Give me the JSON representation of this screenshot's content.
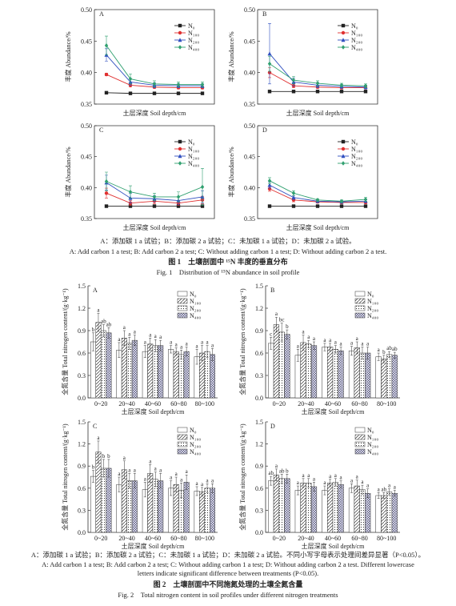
{
  "chart_data": [
    {
      "type": "line",
      "panel": "A",
      "xlabel": "土层深度 Soil depth/cm",
      "ylabel": "丰度 Abundance/%",
      "x": [
        10,
        30,
        50,
        70,
        90
      ],
      "xlim": [
        0,
        100
      ],
      "ylim": [
        0.35,
        0.5
      ],
      "yticks": [
        0.35,
        {
          "value": 0.4,
          "label": "0.40"
        },
        0.45,
        {
          "value": 0.5,
          "label": "0.50"
        }
      ],
      "series": [
        {
          "name": "N₀",
          "color": "#222222",
          "marker": "square",
          "values": [
            0.368,
            0.367,
            0.367,
            0.367,
            0.367
          ],
          "errors": [
            0.001,
            0.001,
            0.001,
            0.001,
            0.001
          ]
        },
        {
          "name": "N₁₀₀",
          "color": "#e03030",
          "marker": "circle",
          "values": [
            0.397,
            0.38,
            0.377,
            0.376,
            0.376
          ],
          "errors": [
            0.002,
            0.003,
            0.002,
            0.002,
            0.002
          ]
        },
        {
          "name": "N₂₀₀",
          "color": "#3050c0",
          "marker": "triangle",
          "values": [
            0.428,
            0.385,
            0.38,
            0.379,
            0.379
          ],
          "errors": [
            0.01,
            0.005,
            0.004,
            0.003,
            0.003
          ]
        },
        {
          "name": "N₄₀₀",
          "color": "#30a070",
          "marker": "diamond",
          "values": [
            0.443,
            0.39,
            0.382,
            0.381,
            0.381
          ],
          "errors": [
            0.015,
            0.008,
            0.005,
            0.004,
            0.004
          ]
        }
      ]
    },
    {
      "type": "line",
      "panel": "B",
      "xlabel": "土层深度 Soil depth/cm",
      "ylabel": "丰度 Abundance/%",
      "x": [
        10,
        30,
        50,
        70,
        90
      ],
      "xlim": [
        0,
        100
      ],
      "ylim": [
        0.35,
        0.5
      ],
      "yticks": [
        0.35,
        {
          "value": 0.4,
          "label": "0.40"
        },
        0.45,
        {
          "value": 0.5,
          "label": "0.50"
        }
      ],
      "series": [
        {
          "name": "N₀",
          "color": "#222222",
          "marker": "square",
          "values": [
            0.37,
            0.37,
            0.37,
            0.37,
            0.37
          ],
          "errors": [
            0.001,
            0.001,
            0.001,
            0.001,
            0.001
          ]
        },
        {
          "name": "N₁₀₀",
          "color": "#e03030",
          "marker": "circle",
          "values": [
            0.4,
            0.379,
            0.377,
            0.376,
            0.376
          ],
          "errors": [
            0.008,
            0.003,
            0.002,
            0.002,
            0.002
          ]
        },
        {
          "name": "N₂₀₀",
          "color": "#3050c0",
          "marker": "triangle",
          "values": [
            0.43,
            0.385,
            0.38,
            0.378,
            0.377
          ],
          "errors": [
            0.048,
            0.006,
            0.004,
            0.003,
            0.003
          ]
        },
        {
          "name": "N₄₀₀",
          "color": "#30a070",
          "marker": "diamond",
          "values": [
            0.414,
            0.388,
            0.383,
            0.38,
            0.379
          ],
          "errors": [
            0.012,
            0.006,
            0.004,
            0.003,
            0.003
          ]
        }
      ]
    },
    {
      "type": "line",
      "panel": "C",
      "xlabel": "土层深度 Soil depth/cm",
      "ylabel": "丰度 Abundance/%",
      "x": [
        10,
        30,
        50,
        70,
        90
      ],
      "xlim": [
        0,
        100
      ],
      "ylim": [
        0.35,
        0.5
      ],
      "yticks": [
        0.35,
        {
          "value": 0.4,
          "label": "0.40"
        },
        0.45,
        {
          "value": 0.5,
          "label": "0.50"
        }
      ],
      "series": [
        {
          "name": "N₀",
          "color": "#222222",
          "marker": "square",
          "values": [
            0.37,
            0.37,
            0.37,
            0.37,
            0.37
          ],
          "errors": [
            0.001,
            0.001,
            0.001,
            0.001,
            0.001
          ]
        },
        {
          "name": "N₁₀₀",
          "color": "#e03030",
          "marker": "circle",
          "values": [
            0.391,
            0.375,
            0.378,
            0.375,
            0.38
          ],
          "errors": [
            0.008,
            0.004,
            0.004,
            0.004,
            0.006
          ]
        },
        {
          "name": "N₂₀₀",
          "color": "#3050c0",
          "marker": "triangle",
          "values": [
            0.408,
            0.383,
            0.382,
            0.379,
            0.385
          ],
          "errors": [
            0.012,
            0.008,
            0.005,
            0.006,
            0.01
          ]
        },
        {
          "name": "N₄₀₀",
          "color": "#30a070",
          "marker": "diamond",
          "values": [
            0.41,
            0.393,
            0.385,
            0.385,
            0.401
          ],
          "errors": [
            0.015,
            0.01,
            0.006,
            0.008,
            0.03
          ]
        }
      ]
    },
    {
      "type": "line",
      "panel": "D",
      "xlabel": "土层深度 Soil depth/cm",
      "ylabel": "丰度 Abundance/%",
      "x": [
        10,
        30,
        50,
        70,
        90
      ],
      "xlim": [
        0,
        100
      ],
      "ylim": [
        0.35,
        0.5
      ],
      "yticks": [
        0.35,
        {
          "value": 0.4,
          "label": "0.40"
        },
        0.45,
        {
          "value": 0.5,
          "label": "0.50"
        }
      ],
      "series": [
        {
          "name": "N₀",
          "color": "#222222",
          "marker": "square",
          "values": [
            0.37,
            0.37,
            0.37,
            0.37,
            0.37
          ],
          "errors": [
            0.001,
            0.001,
            0.001,
            0.001,
            0.001
          ]
        },
        {
          "name": "N₁₀₀",
          "color": "#e03030",
          "marker": "circle",
          "values": [
            0.398,
            0.38,
            0.377,
            0.376,
            0.376
          ],
          "errors": [
            0.004,
            0.003,
            0.002,
            0.002,
            0.002
          ]
        },
        {
          "name": "N₂₀₀",
          "color": "#3050c0",
          "marker": "triangle",
          "values": [
            0.404,
            0.384,
            0.378,
            0.377,
            0.378
          ],
          "errors": [
            0.005,
            0.003,
            0.002,
            0.002,
            0.002
          ]
        },
        {
          "name": "N₄₀₀",
          "color": "#30a070",
          "marker": "diamond",
          "values": [
            0.411,
            0.391,
            0.38,
            0.378,
            0.381
          ],
          "errors": [
            0.005,
            0.004,
            0.002,
            0.002,
            0.003
          ]
        }
      ]
    },
    {
      "type": "bar",
      "panel": "A",
      "xlabel": "土层深度 Soil depth/cm",
      "ylabel": "全氮含量 Total nitrogen content/(g·kg⁻¹)",
      "categories": [
        "0~20",
        "20~40",
        "40~60",
        "60~80",
        "80~100"
      ],
      "ylim": [
        0,
        1.5
      ],
      "yticks": [
        {
          "value": 0,
          "label": "0.0"
        },
        0.3,
        0.6,
        0.9,
        1.2,
        1.5
      ],
      "series": [
        {
          "name": "N₀",
          "pattern": "none",
          "values": [
            0.75,
            0.64,
            0.62,
            0.65,
            0.55
          ],
          "errors": [
            0.12,
            0.1,
            0.08,
            0.05,
            0.1
          ],
          "letters": [
            "b",
            "a",
            "a",
            "a",
            "a"
          ]
        },
        {
          "name": "N₁₀₀",
          "pattern": "diagonal",
          "values": [
            1.01,
            0.8,
            0.72,
            0.62,
            0.6
          ],
          "errors": [
            0.12,
            0.1,
            0.08,
            0.05,
            0.1
          ],
          "letters": [
            "a",
            "a",
            "a",
            "a",
            "a"
          ]
        },
        {
          "name": "N₂₀₀",
          "pattern": "dots",
          "values": [
            0.9,
            0.73,
            0.7,
            0.58,
            0.62
          ],
          "errors": [
            0.08,
            0.08,
            0.08,
            0.06,
            0.08
          ],
          "letters": [
            "ab",
            "a",
            "a",
            "a",
            "a"
          ]
        },
        {
          "name": "N₄₀₀",
          "pattern": "grid",
          "values": [
            0.87,
            0.77,
            0.7,
            0.62,
            0.58
          ],
          "errors": [
            0.07,
            0.07,
            0.07,
            0.06,
            0.08
          ],
          "letters": [
            "ab",
            "a",
            "a",
            "a",
            "a"
          ]
        }
      ]
    },
    {
      "type": "bar",
      "panel": "B",
      "xlabel": "土层深度 Soil depth/cm",
      "ylabel": "全氮含量 Total nitrogen content/(g·kg⁻¹)",
      "categories": [
        "0~20",
        "20~40",
        "40~60",
        "60~80",
        "80~100"
      ],
      "ylim": [
        0,
        1.5
      ],
      "yticks": [
        {
          "value": 0,
          "label": "0.0"
        },
        0.3,
        0.6,
        0.9,
        1.2,
        1.5
      ],
      "series": [
        {
          "name": "N₀",
          "pattern": "none",
          "values": [
            0.73,
            0.57,
            0.68,
            0.63,
            0.55
          ],
          "errors": [
            0.08,
            0.08,
            0.05,
            0.06,
            0.05
          ],
          "letters": [
            "c",
            "a",
            "a",
            "a",
            "a"
          ]
        },
        {
          "name": "N₁₀₀",
          "pattern": "diagonal",
          "values": [
            0.98,
            0.74,
            0.68,
            0.67,
            0.52
          ],
          "errors": [
            0.1,
            0.1,
            0.05,
            0.08,
            0.05
          ],
          "letters": [
            "a",
            "a",
            "a",
            "a",
            "b"
          ]
        },
        {
          "name": "N₂₀₀",
          "pattern": "dots",
          "values": [
            0.88,
            0.72,
            0.65,
            0.6,
            0.58
          ],
          "errors": [
            0.12,
            0.05,
            0.05,
            0.08,
            0.04
          ],
          "letters": [
            "bc",
            "a",
            "a",
            "a",
            "ab"
          ]
        },
        {
          "name": "N₄₀₀",
          "pattern": "grid",
          "values": [
            0.85,
            0.7,
            0.63,
            0.6,
            0.57
          ],
          "errors": [
            0.06,
            0.05,
            0.05,
            0.08,
            0.04
          ],
          "letters": [
            "b",
            "a",
            "a",
            "a",
            "ab"
          ]
        }
      ]
    },
    {
      "type": "bar",
      "panel": "C",
      "xlabel": "土层深度 Soil depth/cm",
      "ylabel": "全氮含量 Total nitrogen content/(g·kg⁻¹)",
      "categories": [
        "0~20",
        "20~40",
        "40~60",
        "60~80",
        "80~100"
      ],
      "ylim": [
        0,
        1.5
      ],
      "yticks": [
        {
          "value": 0,
          "label": "0.0"
        },
        0.3,
        0.6,
        0.9,
        1.2,
        1.5
      ],
      "series": [
        {
          "name": "N₀",
          "pattern": "none",
          "values": [
            0.76,
            0.65,
            0.58,
            0.6,
            0.56
          ],
          "errors": [
            0.08,
            0.1,
            0.1,
            0.1,
            0.06
          ],
          "letters": [
            "b",
            "a",
            "a",
            "a",
            "a"
          ]
        },
        {
          "name": "N₁₀₀",
          "pattern": "diagonal",
          "values": [
            1.09,
            0.85,
            0.8,
            0.65,
            0.55
          ],
          "errors": [
            0.15,
            0.12,
            0.12,
            0.1,
            0.06
          ],
          "letters": [
            "a",
            "a",
            "a",
            "a",
            "a"
          ]
        },
        {
          "name": "N₂₀₀",
          "pattern": "dots",
          "values": [
            0.87,
            0.7,
            0.72,
            0.57,
            0.6
          ],
          "errors": [
            0.12,
            0.1,
            0.1,
            0.1,
            0.06
          ],
          "letters": [
            "b",
            "a",
            "a",
            "a",
            "a"
          ]
        },
        {
          "name": "N₄₀₀",
          "pattern": "grid",
          "values": [
            0.87,
            0.7,
            0.7,
            0.68,
            0.6
          ],
          "errors": [
            0.12,
            0.1,
            0.1,
            0.1,
            0.06
          ],
          "letters": [
            "b",
            "a",
            "a",
            "a",
            "a"
          ]
        }
      ]
    },
    {
      "type": "bar",
      "panel": "D",
      "xlabel": "土层深度 Soil depth/cm",
      "ylabel": "全氮含量 Total nitrogen content/(g·kg⁻¹)",
      "categories": [
        "0~20",
        "20~40",
        "40~60",
        "60~80",
        "80~100"
      ],
      "ylim": [
        0,
        1.5
      ],
      "yticks": [
        {
          "value": 0,
          "label": "0.0"
        },
        0.3,
        0.6,
        0.9,
        1.2,
        1.5
      ],
      "series": [
        {
          "name": "N₀",
          "pattern": "none",
          "values": [
            0.7,
            0.57,
            0.57,
            0.6,
            0.5
          ],
          "errors": [
            0.06,
            0.06,
            0.06,
            0.06,
            0.04
          ],
          "letters": [
            "ab",
            "a",
            "a",
            "a",
            "a"
          ]
        },
        {
          "name": "N₁₀₀",
          "pattern": "diagonal",
          "values": [
            0.78,
            0.67,
            0.67,
            0.63,
            0.5
          ],
          "errors": [
            0.08,
            0.06,
            0.05,
            0.08,
            0.04
          ],
          "letters": [
            "a",
            "a",
            "a",
            "a",
            "ab"
          ]
        },
        {
          "name": "N₂₀₀",
          "pattern": "dots",
          "values": [
            0.73,
            0.67,
            0.68,
            0.58,
            0.55
          ],
          "errors": [
            0.06,
            0.06,
            0.05,
            0.06,
            0.04
          ],
          "letters": [
            "ab",
            "a",
            "a",
            "a",
            "a"
          ]
        },
        {
          "name": "N₄₀₀",
          "pattern": "grid",
          "values": [
            0.73,
            0.62,
            0.65,
            0.53,
            0.53
          ],
          "errors": [
            0.06,
            0.06,
            0.05,
            0.06,
            0.04
          ],
          "letters": [
            "b",
            "a",
            "a",
            "a",
            "a"
          ]
        }
      ]
    }
  ],
  "captions": {
    "fig1_note_zh": "A：添加碳 1 a 试验；B：添加碳 2 a 试验；C：未加碳 1 a 试验；D：未加碳 2 a 试验。",
    "fig1_note_en": "A: Add carbon 1 a test; B: Add carbon 2 a test; C: Without adding carbon 1 a test; D: Without adding carbon 2 a test.",
    "fig1_title_zh": "图 1　土壤剖面中 ¹⁵N 丰度的垂直分布",
    "fig1_title_en": "Fig. 1　Distribution of ¹⁵N abundance in soil profile",
    "fig2_note_zh": "A：添加碳 1 a 试验；B：添加碳 2 a 试验；C：未加碳 1 a 试验；D：未加碳 2 a 试验。不同小写字母表示处理间差异显著（P<0.05）。",
    "fig2_note_en_1": "A: Add carbon 1 a test; B: Add carbon 2 a test; C: Without adding carbon 1 a test; D: Without adding carbon 2 a test. Different lowercase",
    "fig2_note_en_2": "letters indicate significant difference between treatments (P<0.05).",
    "fig2_title_zh": "图 2　土壤剖面中不同施氮处理的土壤全氮含量",
    "fig2_title_en": "Fig. 2　Total nitrogen content in soil profiles under different nitrogen treatments"
  }
}
